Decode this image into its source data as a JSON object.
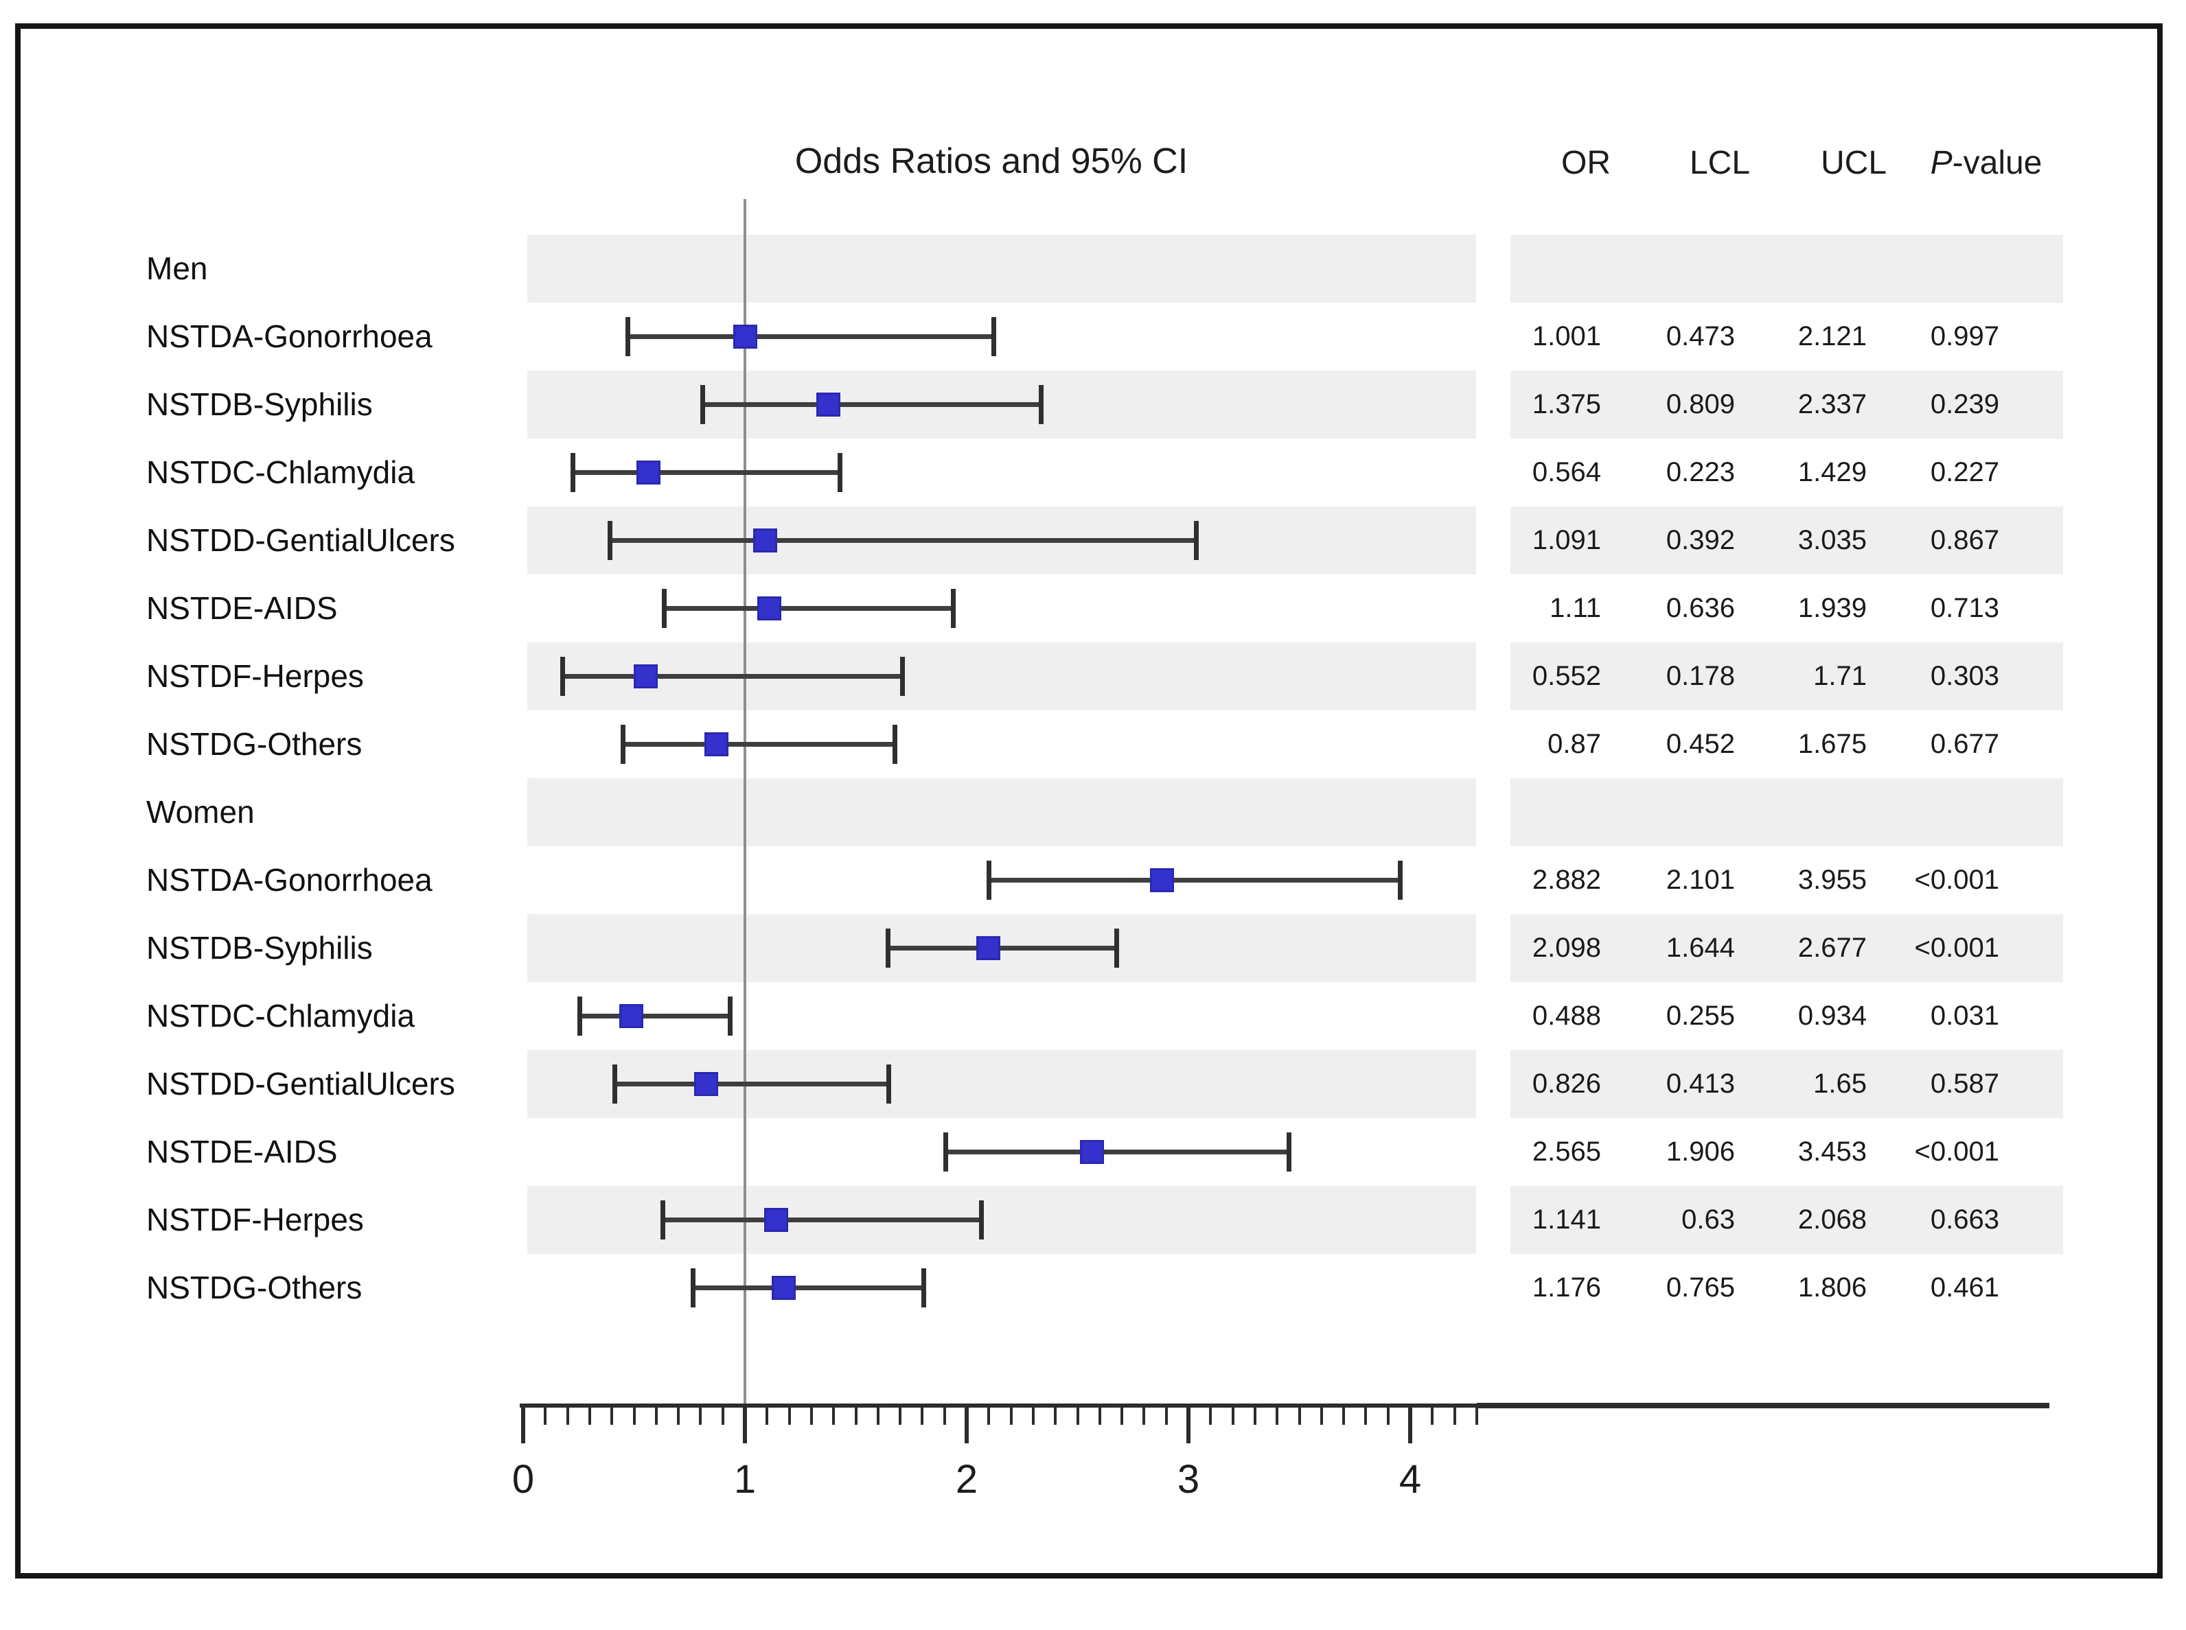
{
  "chart_data": {
    "type": "forest",
    "title": "Odds Ratios and 95% CI",
    "x_ticks": [
      "0",
      "1",
      "2",
      "3",
      "4"
    ],
    "xlim": [
      0,
      4.3
    ],
    "minor_tick_step": 0.1,
    "reference_line_x": 1,
    "grid": false,
    "legend": "none",
    "groups": [
      {
        "label": "Men",
        "rows": [
          {
            "label": "NSTDA-Gonorrhoea",
            "or": "1.001",
            "lcl": "0.473",
            "ucl": "2.121",
            "p": "0.997"
          },
          {
            "label": "NSTDB-Syphilis",
            "or": "1.375",
            "lcl": "0.809",
            "ucl": "2.337",
            "p": "0.239"
          },
          {
            "label": "NSTDC-Chlamydia",
            "or": "0.564",
            "lcl": "0.223",
            "ucl": "1.429",
            "p": "0.227"
          },
          {
            "label": "NSTDD-GentialUlcers",
            "or": "1.091",
            "lcl": "0.392",
            "ucl": "3.035",
            "p": "0.867"
          },
          {
            "label": "NSTDE-AIDS",
            "or": "1.11",
            "lcl": "0.636",
            "ucl": "1.939",
            "p": "0.713"
          },
          {
            "label": "NSTDF-Herpes",
            "or": "0.552",
            "lcl": "0.178",
            "ucl": "1.71",
            "p": "0.303"
          },
          {
            "label": "NSTDG-Others",
            "or": "0.87",
            "lcl": "0.452",
            "ucl": "1.675",
            "p": "0.677"
          }
        ]
      },
      {
        "label": "Women",
        "rows": [
          {
            "label": "NSTDA-Gonorrhoea",
            "or": "2.882",
            "lcl": "2.101",
            "ucl": "3.955",
            "p": "<0.001"
          },
          {
            "label": "NSTDB-Syphilis",
            "or": "2.098",
            "lcl": "1.644",
            "ucl": "2.677",
            "p": "<0.001"
          },
          {
            "label": "NSTDC-Chlamydia",
            "or": "0.488",
            "lcl": "0.255",
            "ucl": "0.934",
            "p": "0.031"
          },
          {
            "label": "NSTDD-GentialUlcers",
            "or": "0.826",
            "lcl": "0.413",
            "ucl": "1.65",
            "p": "0.587"
          },
          {
            "label": "NSTDE-AIDS",
            "or": "2.565",
            "lcl": "1.906",
            "ucl": "3.453",
            "p": "<0.001"
          },
          {
            "label": "NSTDF-Herpes",
            "or": "1.141",
            "lcl": "0.63",
            "ucl": "2.068",
            "p": "0.663"
          },
          {
            "label": "NSTDG-Others",
            "or": "1.176",
            "lcl": "0.765",
            "ucl": "1.806",
            "p": "0.461"
          }
        ]
      }
    ]
  },
  "table": {
    "headers": {
      "or": "OR",
      "lcl": "LCL",
      "ucl": "UCL",
      "p_italic": "P",
      "p_rest": "-value"
    }
  },
  "colors": {
    "marker_fill": "#3431cd",
    "marker_border": "#2b28b0",
    "ci_line": "#3e3e3e",
    "ci_cap": "#2f2f2f",
    "row_band": "#f0efef",
    "reference_line": "#8f8f8f",
    "axis": "#2c2c2c",
    "text": "#1a1a1a"
  }
}
